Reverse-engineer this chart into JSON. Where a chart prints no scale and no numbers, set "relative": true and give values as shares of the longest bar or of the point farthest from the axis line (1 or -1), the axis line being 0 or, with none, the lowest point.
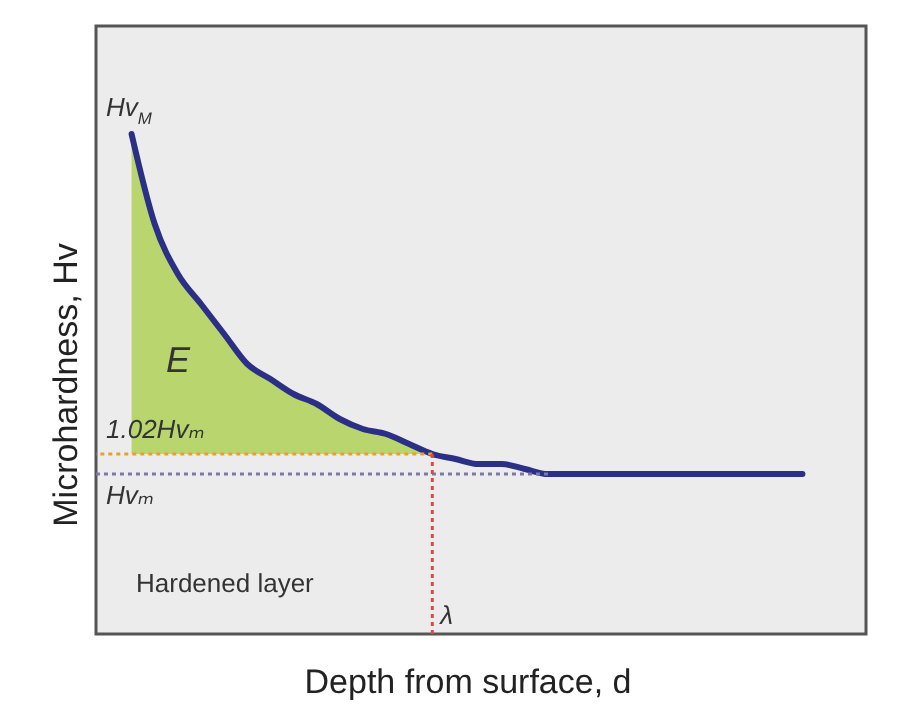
{
  "chart_data": {
    "type": "line",
    "relative": true,
    "xlabel": "Depth from surface, d",
    "ylabel": "Microhardness, Hv",
    "categories": [
      null,
      null,
      null,
      null,
      null,
      null,
      null,
      null,
      null,
      null,
      null,
      null,
      null,
      null,
      null,
      null,
      null,
      null,
      null,
      null,
      null,
      null,
      null,
      null,
      null,
      null,
      null,
      null,
      null,
      null
    ],
    "series": [
      {
        "type": "area",
        "color": "#b9d66e",
        "values": [
          1,
          0.82,
          0.72,
          0.66,
          0.6,
          0.54,
          0.51,
          0.48,
          0.46,
          0.43,
          0.41,
          0.4,
          0.38,
          0.36,
          null,
          null,
          null,
          null,
          null,
          null,
          null,
          null,
          null,
          null,
          null,
          null,
          null,
          null,
          null,
          null
        ]
      },
      {
        "color": "#2b2f86",
        "values": [
          1,
          0.82,
          0.72,
          0.66,
          0.6,
          0.54,
          0.51,
          0.48,
          0.46,
          0.43,
          0.41,
          0.4,
          0.38,
          0.36,
          0.35,
          0.34,
          0.34,
          0.33,
          0.32,
          0.32,
          0.32,
          0.32,
          0.32,
          0.32,
          0.32,
          0.32,
          0.32,
          0.32,
          0.32,
          0.32
        ]
      }
    ],
    "ref_lines": [
      {
        "axis": "y",
        "value": 0.36,
        "label": "1.02Hvₘ",
        "color": "#e8a030",
        "line_style": "dotted"
      },
      {
        "axis": "y",
        "value": 0.32,
        "label": "Hvₘ",
        "color": "#7a7aa8",
        "line_style": "dotted"
      }
    ],
    "annotations": [
      "E",
      "Hardened layer",
      "λ",
      {
        "text": "Hv$_{M}$",
        "y": 1
      }
    ],
    "marker": "none"
  }
}
